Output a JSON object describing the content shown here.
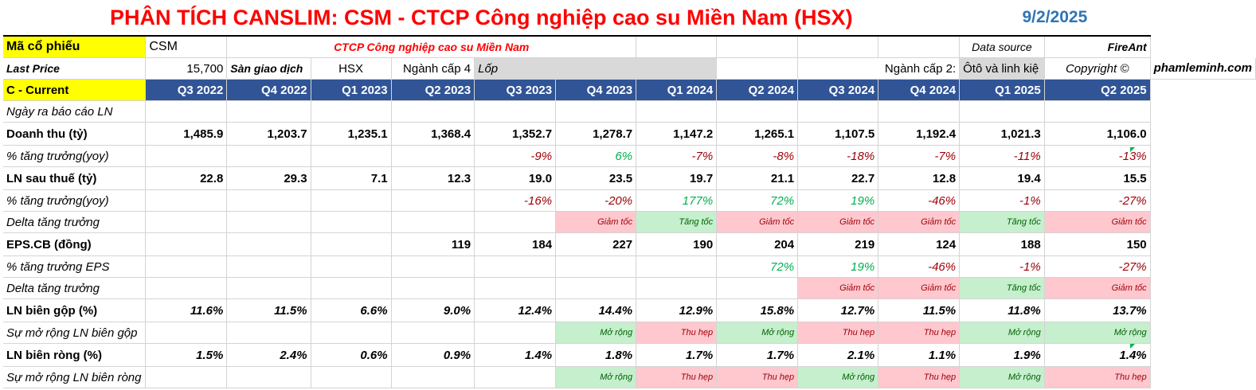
{
  "title": "PHÂN TÍCH CANSLIM: CSM - CTCP Công nghiệp cao su Miền Nam (HSX)",
  "date": "9/2/2025",
  "ticker_label": "Mã cổ phiếu",
  "ticker": "CSM",
  "company_name": "CTCP Công nghiệp cao su Miền Nam",
  "data_source_label": "Data source",
  "data_source": "FireAnt",
  "last_price_label": "Last Price",
  "last_price": "15,700",
  "exchange_label": "Sàn giao dịch",
  "exchange": "HSX",
  "industry4_label": "Ngành cấp 4",
  "industry4": "Lốp",
  "industry2_label": "Ngành cấp 2:",
  "industry2": "Ôtô và linh kiệ",
  "copyright_label": "Copyright ©",
  "copyright": "phamleminh.com",
  "current_label": "C - Current",
  "quarters": [
    "Q3 2022",
    "Q4 2022",
    "Q1 2023",
    "Q2 2023",
    "Q3 2023",
    "Q4 2023",
    "Q1 2024",
    "Q2 2024",
    "Q3 2024",
    "Q4 2024",
    "Q1 2025",
    "Q2 2025"
  ],
  "rows": {
    "report_date": {
      "label": "Ngày ra báo cáo LN"
    },
    "revenue": {
      "label": "Doanh thu (tỷ)",
      "values": [
        "1,485.9",
        "1,203.7",
        "1,235.1",
        "1,368.4",
        "1,352.7",
        "1,278.7",
        "1,147.2",
        "1,265.1",
        "1,107.5",
        "1,192.4",
        "1,021.3",
        "1,106.0"
      ]
    },
    "revenue_growth": {
      "label": "% tăng trưởng(yoy)",
      "values": [
        "",
        "",
        "",
        "",
        "-9%",
        "6%",
        "-7%",
        "-8%",
        "-18%",
        "-7%",
        "-11%",
        "-13%"
      ]
    },
    "net_profit": {
      "label": "LN sau thuế (tỷ)",
      "values": [
        "22.8",
        "29.3",
        "7.1",
        "12.3",
        "19.0",
        "23.5",
        "19.7",
        "21.1",
        "22.7",
        "12.8",
        "19.4",
        "15.5"
      ]
    },
    "profit_growth": {
      "label": "% tăng trưởng(yoy)",
      "values": [
        "",
        "",
        "",
        "",
        "-16%",
        "-20%",
        "177%",
        "72%",
        "19%",
        "-46%",
        "-1%",
        "-27%"
      ]
    },
    "profit_delta": {
      "label": "Delta tăng trưởng",
      "values": [
        "",
        "",
        "",
        "",
        "",
        "Giảm tốc",
        "Tăng tốc",
        "Giảm tốc",
        "Giảm tốc",
        "Giảm tốc",
        "Tăng tốc",
        "Giảm tốc"
      ]
    },
    "eps": {
      "label": "EPS.CB (đồng)",
      "values": [
        "",
        "",
        "",
        "119",
        "184",
        "227",
        "190",
        "204",
        "219",
        "124",
        "188",
        "150"
      ]
    },
    "eps_growth": {
      "label": "% tăng trưởng EPS",
      "values": [
        "",
        "",
        "",
        "",
        "",
        "",
        "",
        "72%",
        "19%",
        "-46%",
        "-1%",
        "-27%"
      ]
    },
    "eps_delta": {
      "label": "Delta tăng trưởng",
      "values": [
        "",
        "",
        "",
        "",
        "",
        "",
        "",
        "",
        "Giảm tốc",
        "Giảm tốc",
        "Tăng tốc",
        "Giảm tốc"
      ]
    },
    "gross_margin": {
      "label": "LN biên gộp (%)",
      "values": [
        "11.6%",
        "11.5%",
        "6.6%",
        "9.0%",
        "12.4%",
        "14.4%",
        "12.9%",
        "15.8%",
        "12.7%",
        "11.5%",
        "11.8%",
        "13.7%"
      ]
    },
    "gross_margin_exp": {
      "label": "Sự mở rộng LN biên gộp",
      "values": [
        "",
        "",
        "",
        "",
        "",
        "Mở rộng",
        "Thu hẹp",
        "Mở rộng",
        "Thu hẹp",
        "Thu hẹp",
        "Mở rộng",
        "Mở rộng"
      ]
    },
    "net_margin": {
      "label": "LN biên ròng (%)",
      "values": [
        "1.5%",
        "2.4%",
        "0.6%",
        "0.9%",
        "1.4%",
        "1.8%",
        "1.7%",
        "1.7%",
        "2.1%",
        "1.1%",
        "1.9%",
        "1.4%"
      ]
    },
    "net_margin_exp": {
      "label": "Sự mở rộng LN biên ròng",
      "values": [
        "",
        "",
        "",
        "",
        "",
        "Mở rộng",
        "Thu hẹp",
        "Thu hẹp",
        "Mở rộng",
        "Thu hẹp",
        "Mở rộng",
        "Thu hẹp"
      ]
    }
  },
  "colors": {
    "header_blue": "#305496",
    "title_red": "#ff0000",
    "date_blue": "#2e75b6",
    "good_fill": "#c6efce",
    "bad_fill": "#ffc7ce"
  }
}
